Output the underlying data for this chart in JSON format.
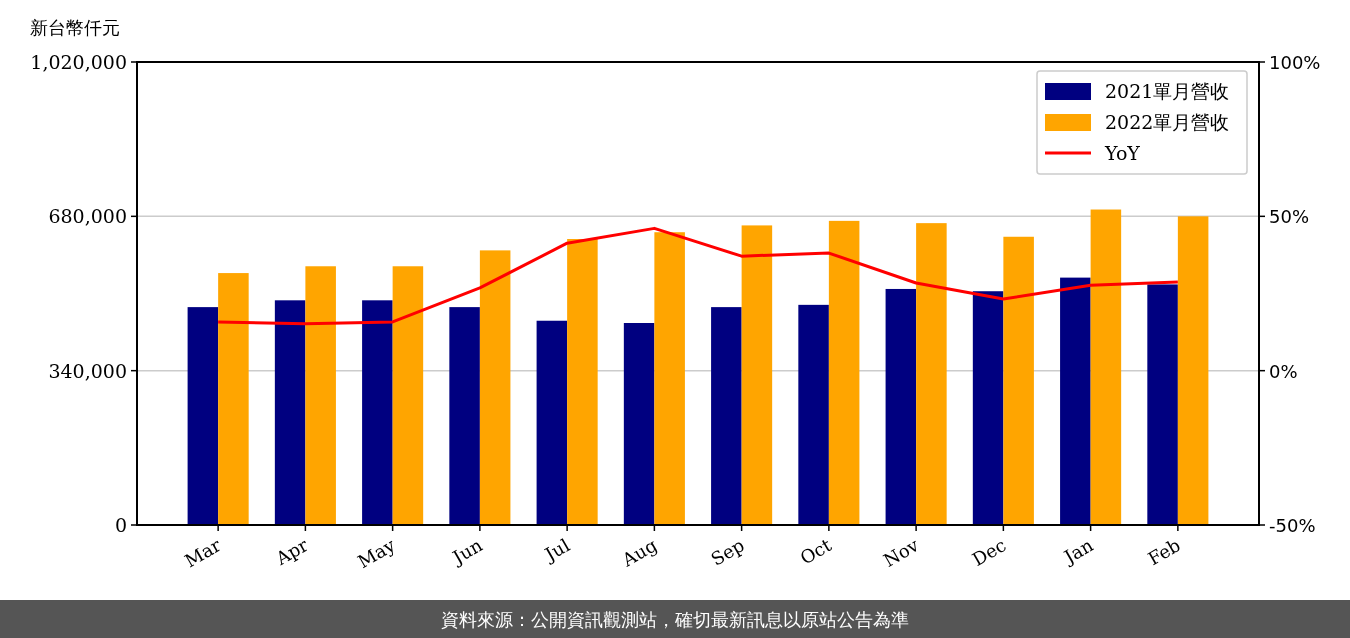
{
  "chart_data": {
    "type": "bar",
    "ylabel": "新台幣仟元",
    "categories": [
      "Mar",
      "Apr",
      "May",
      "Jun",
      "Jul",
      "Aug",
      "Sep",
      "Oct",
      "Nov",
      "Dec",
      "Jan",
      "Feb"
    ],
    "series": [
      {
        "name": "2021單月營收",
        "color": "#000080",
        "values": [
          480000,
          495000,
          495000,
          480000,
          450000,
          445000,
          480000,
          485000,
          520000,
          515000,
          545000,
          530000
        ]
      },
      {
        "name": "2022單月營收",
        "color": "#ffa500",
        "values": [
          555000,
          570000,
          570000,
          605000,
          630000,
          645000,
          660000,
          670000,
          665000,
          635000,
          695000,
          680000
        ]
      },
      {
        "name": "YoY",
        "type": "line",
        "axis": "y2",
        "color": "#ff0000",
        "values": [
          15.8,
          15.2,
          15.8,
          26.8,
          41.3,
          46.1,
          37.1,
          38.1,
          28.4,
          23.2,
          27.7,
          28.7
        ]
      }
    ],
    "ylim": [
      0,
      1020000
    ],
    "yticks": [
      {
        "value": 0,
        "label": "0"
      },
      {
        "value": 340000,
        "label": "340,000"
      },
      {
        "value": 680000,
        "label": "680,000"
      },
      {
        "value": 1020000,
        "label": "1,020,000"
      }
    ],
    "y2lim": [
      -50,
      100
    ],
    "y2ticks": [
      {
        "value": -50,
        "label": "-50%"
      },
      {
        "value": 0,
        "label": "0%"
      },
      {
        "value": 50,
        "label": "50%"
      },
      {
        "value": 100,
        "label": "100%"
      }
    ],
    "grid": "y",
    "legend": "top right",
    "annotations": [
      "資料來源：公開資訊觀測站，確切最新訊息以原站公告為準"
    ]
  }
}
